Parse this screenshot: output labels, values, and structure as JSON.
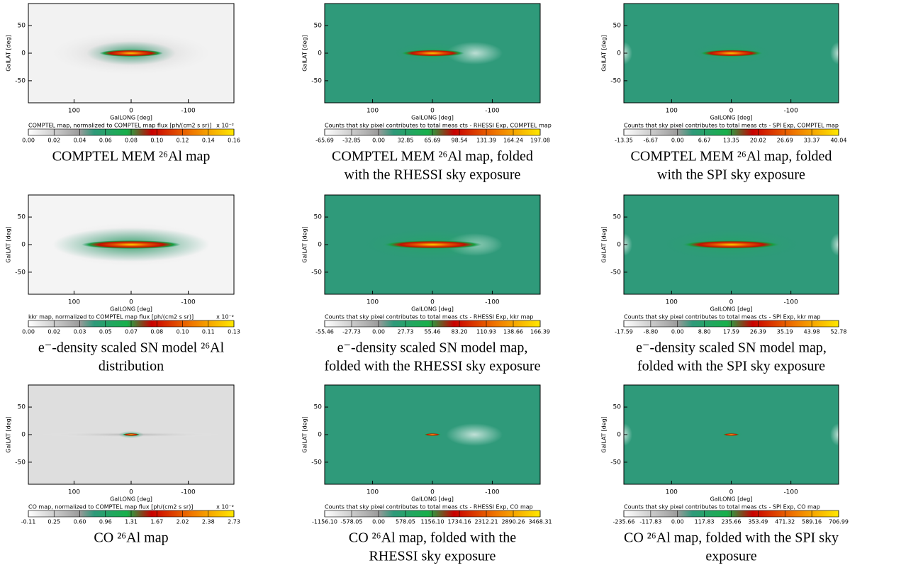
{
  "panels": [
    {
      "background": "#f2f2f2",
      "ylabel": "GalLAT [deg]",
      "xlabel": "GalLONG [deg]",
      "xlim": [
        180,
        -180
      ],
      "ylim": [
        -90,
        90
      ],
      "xticks": [
        100,
        0,
        -100
      ],
      "yticks": [
        50,
        0,
        -50
      ],
      "colorbar_title": "COMPTEL map, normalized to COMPTEL map flux [ph/(cm2 s sr)]",
      "colorbar_scale": "x 10⁻²",
      "colorbar_ticks": [
        "0.00",
        "0.02",
        "0.04",
        "0.06",
        "0.08",
        "0.10",
        "0.12",
        "0.14",
        "0.16"
      ],
      "caption": [
        "COMPTEL MEM ²⁶Al map"
      ]
    },
    {
      "background": "#2f9a7a",
      "ylabel": "GalLAT [deg]",
      "xlabel": "GalLONG [deg]",
      "xlim": [
        180,
        -180
      ],
      "ylim": [
        -90,
        90
      ],
      "xticks": [
        100,
        0,
        -100
      ],
      "yticks": [
        50,
        0,
        -50
      ],
      "colorbar_title": "Counts that sky pixel contributes to total meas cts - RHESSI Exp, COMPTEL map",
      "colorbar_ticks": [
        "-65.69",
        "-32.85",
        "0.00",
        "32.85",
        "65.69",
        "98.54",
        "131.39",
        "164.24",
        "197.08"
      ],
      "caption": [
        "COMPTEL MEM ²⁶Al map, folded",
        "with the RHESSI sky exposure"
      ]
    },
    {
      "background": "#2f9a7a",
      "ylabel": "GalLAT [deg]",
      "xlabel": "GalLONG [deg]",
      "xlim": [
        180,
        -180
      ],
      "ylim": [
        -90,
        90
      ],
      "xticks": [
        100,
        0,
        -100
      ],
      "yticks": [
        50,
        0,
        -50
      ],
      "colorbar_title": "Counts that sky pixel contributes to total meas cts - SPI Exp, COMPTEL map",
      "colorbar_ticks": [
        "-13.35",
        "-6.67",
        "0.00",
        "6.67",
        "13.35",
        "20.02",
        "26.69",
        "33.37",
        "40.04"
      ],
      "caption": [
        "COMPTEL MEM ²⁶Al map, folded",
        "with the SPI sky exposure"
      ]
    },
    {
      "background": "#f4f4f4",
      "ylabel": "GalLAT [deg]",
      "xlabel": "GalLONG [deg]",
      "xlim": [
        180,
        -180
      ],
      "ylim": [
        -90,
        90
      ],
      "xticks": [
        100,
        0,
        -100
      ],
      "yticks": [
        50,
        0,
        -50
      ],
      "colorbar_title": "kkr map, normalized to COMPTEL map flux [ph/(cm2 s sr)]",
      "colorbar_scale": "x 10⁻²",
      "colorbar_ticks": [
        "0.00",
        "0.02",
        "0.03",
        "0.05",
        "0.07",
        "0.08",
        "0.10",
        "0.11",
        "0.13"
      ],
      "caption": [
        "e⁻-density scaled SN model ²⁶Al",
        "distribution"
      ]
    },
    {
      "background": "#2f9a7a",
      "ylabel": "GalLAT [deg]",
      "xlabel": "GalLONG [deg]",
      "xlim": [
        180,
        -180
      ],
      "ylim": [
        -90,
        90
      ],
      "xticks": [
        100,
        0,
        -100
      ],
      "yticks": [
        50,
        0,
        -50
      ],
      "colorbar_title": "Counts that sky pixel contributes to total meas cts - RHESSI Exp, kkr map",
      "colorbar_ticks": [
        "-55.46",
        "-27.73",
        "0.00",
        "27.73",
        "55.46",
        "83.20",
        "110.93",
        "138.66",
        "166.39"
      ],
      "caption": [
        "e⁻-density scaled SN model map,",
        "folded with the RHESSI sky exposure"
      ]
    },
    {
      "background": "#2f9a7a",
      "ylabel": "GalLAT [deg]",
      "xlabel": "GalLONG [deg]",
      "xlim": [
        180,
        -180
      ],
      "ylim": [
        -90,
        90
      ],
      "xticks": [
        100,
        0,
        -100
      ],
      "yticks": [
        50,
        0,
        -50
      ],
      "colorbar_title": "Counts that sky pixel contributes to total meas cts - SPI Exp, kkr map",
      "colorbar_ticks": [
        "-17.59",
        "-8.80",
        "0.00",
        "8.80",
        "17.59",
        "26.39",
        "35.19",
        "43.98",
        "52.78"
      ],
      "caption": [
        "e⁻-density scaled SN model map,",
        "folded with the SPI sky exposure"
      ]
    },
    {
      "background": "#dedede",
      "ylabel": "GalLAT [deg]",
      "xlabel": "GalLONG [deg]",
      "xlim": [
        180,
        -180
      ],
      "ylim": [
        -90,
        90
      ],
      "xticks": [
        100,
        0,
        -100
      ],
      "yticks": [
        50,
        0,
        -50
      ],
      "colorbar_title": "CO map, normalized to COMPTEL map flux [ph/(cm2 s sr)]",
      "colorbar_scale": "x 10⁻²",
      "colorbar_ticks": [
        "-0.11",
        "0.25",
        "0.60",
        "0.96",
        "1.31",
        "1.67",
        "2.02",
        "2.38",
        "2.73"
      ],
      "caption": [
        "CO ²⁶Al map"
      ]
    },
    {
      "background": "#2f9a7a",
      "ylabel": "GalLAT [deg]",
      "xlabel": "GalLONG [deg]",
      "xlim": [
        180,
        -180
      ],
      "ylim": [
        -90,
        90
      ],
      "xticks": [
        100,
        0,
        -100
      ],
      "yticks": [
        50,
        0,
        -50
      ],
      "colorbar_title": "Counts that sky pixel contributes to total meas cts - RHESSI Exp, CO map",
      "colorbar_ticks": [
        "-1156.10",
        "-578.05",
        "0.00",
        "578.05",
        "1156.10",
        "1734.16",
        "2312.21",
        "2890.26",
        "3468.31"
      ],
      "caption": [
        "CO ²⁶Al map, folded with the",
        "RHESSI sky exposure"
      ]
    },
    {
      "background": "#2f9a7a",
      "ylabel": "GalLAT [deg]",
      "xlabel": "GalLONG [deg]",
      "xlim": [
        180,
        -180
      ],
      "ylim": [
        -90,
        90
      ],
      "xticks": [
        100,
        0,
        -100
      ],
      "yticks": [
        50,
        0,
        -50
      ],
      "colorbar_title": "Counts that sky pixel contributes to total meas cts - SPI Exp, CO map",
      "colorbar_ticks": [
        "-235.66",
        "-117.83",
        "0.00",
        "117.83",
        "235.66",
        "353.49",
        "471.32",
        "589.16",
        "706.99"
      ],
      "caption": [
        "CO ²⁶Al map, folded with the SPI sky",
        "exposure"
      ]
    }
  ]
}
